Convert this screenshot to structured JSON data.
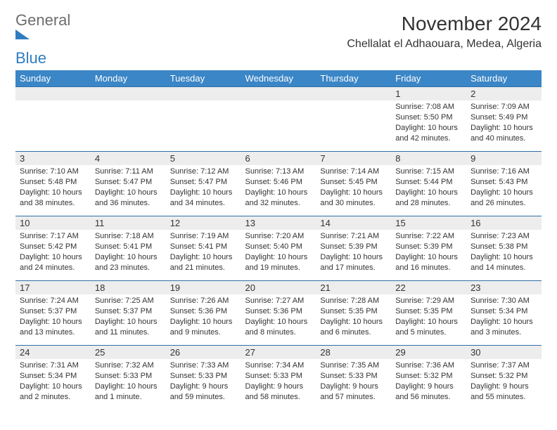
{
  "logo": {
    "text1": "General",
    "text2": "Blue"
  },
  "title": "November 2024",
  "location": "Chellalat el Adhaouara, Medea, Algeria",
  "colors": {
    "header_bg": "#3b86c6",
    "header_text": "#ffffff",
    "row_divider": "#2f6fa8",
    "daynum_bg": "#ededed",
    "logo_gray": "#6d6d6d",
    "logo_blue": "#2f7dc0",
    "page_bg": "#ffffff",
    "text": "#333333"
  },
  "typography": {
    "month_title_pt": 28,
    "location_pt": 16,
    "header_pt": 13,
    "daynum_pt": 13,
    "details_pt": 11
  },
  "weekdays": [
    "Sunday",
    "Monday",
    "Tuesday",
    "Wednesday",
    "Thursday",
    "Friday",
    "Saturday"
  ],
  "weeks": [
    [
      {
        "n": "",
        "sunrise": "",
        "sunset": "",
        "daylight": ""
      },
      {
        "n": "",
        "sunrise": "",
        "sunset": "",
        "daylight": ""
      },
      {
        "n": "",
        "sunrise": "",
        "sunset": "",
        "daylight": ""
      },
      {
        "n": "",
        "sunrise": "",
        "sunset": "",
        "daylight": ""
      },
      {
        "n": "",
        "sunrise": "",
        "sunset": "",
        "daylight": ""
      },
      {
        "n": "1",
        "sunrise": "Sunrise: 7:08 AM",
        "sunset": "Sunset: 5:50 PM",
        "daylight": "Daylight: 10 hours and 42 minutes."
      },
      {
        "n": "2",
        "sunrise": "Sunrise: 7:09 AM",
        "sunset": "Sunset: 5:49 PM",
        "daylight": "Daylight: 10 hours and 40 minutes."
      }
    ],
    [
      {
        "n": "3",
        "sunrise": "Sunrise: 7:10 AM",
        "sunset": "Sunset: 5:48 PM",
        "daylight": "Daylight: 10 hours and 38 minutes."
      },
      {
        "n": "4",
        "sunrise": "Sunrise: 7:11 AM",
        "sunset": "Sunset: 5:47 PM",
        "daylight": "Daylight: 10 hours and 36 minutes."
      },
      {
        "n": "5",
        "sunrise": "Sunrise: 7:12 AM",
        "sunset": "Sunset: 5:47 PM",
        "daylight": "Daylight: 10 hours and 34 minutes."
      },
      {
        "n": "6",
        "sunrise": "Sunrise: 7:13 AM",
        "sunset": "Sunset: 5:46 PM",
        "daylight": "Daylight: 10 hours and 32 minutes."
      },
      {
        "n": "7",
        "sunrise": "Sunrise: 7:14 AM",
        "sunset": "Sunset: 5:45 PM",
        "daylight": "Daylight: 10 hours and 30 minutes."
      },
      {
        "n": "8",
        "sunrise": "Sunrise: 7:15 AM",
        "sunset": "Sunset: 5:44 PM",
        "daylight": "Daylight: 10 hours and 28 minutes."
      },
      {
        "n": "9",
        "sunrise": "Sunrise: 7:16 AM",
        "sunset": "Sunset: 5:43 PM",
        "daylight": "Daylight: 10 hours and 26 minutes."
      }
    ],
    [
      {
        "n": "10",
        "sunrise": "Sunrise: 7:17 AM",
        "sunset": "Sunset: 5:42 PM",
        "daylight": "Daylight: 10 hours and 24 minutes."
      },
      {
        "n": "11",
        "sunrise": "Sunrise: 7:18 AM",
        "sunset": "Sunset: 5:41 PM",
        "daylight": "Daylight: 10 hours and 23 minutes."
      },
      {
        "n": "12",
        "sunrise": "Sunrise: 7:19 AM",
        "sunset": "Sunset: 5:41 PM",
        "daylight": "Daylight: 10 hours and 21 minutes."
      },
      {
        "n": "13",
        "sunrise": "Sunrise: 7:20 AM",
        "sunset": "Sunset: 5:40 PM",
        "daylight": "Daylight: 10 hours and 19 minutes."
      },
      {
        "n": "14",
        "sunrise": "Sunrise: 7:21 AM",
        "sunset": "Sunset: 5:39 PM",
        "daylight": "Daylight: 10 hours and 17 minutes."
      },
      {
        "n": "15",
        "sunrise": "Sunrise: 7:22 AM",
        "sunset": "Sunset: 5:39 PM",
        "daylight": "Daylight: 10 hours and 16 minutes."
      },
      {
        "n": "16",
        "sunrise": "Sunrise: 7:23 AM",
        "sunset": "Sunset: 5:38 PM",
        "daylight": "Daylight: 10 hours and 14 minutes."
      }
    ],
    [
      {
        "n": "17",
        "sunrise": "Sunrise: 7:24 AM",
        "sunset": "Sunset: 5:37 PM",
        "daylight": "Daylight: 10 hours and 13 minutes."
      },
      {
        "n": "18",
        "sunrise": "Sunrise: 7:25 AM",
        "sunset": "Sunset: 5:37 PM",
        "daylight": "Daylight: 10 hours and 11 minutes."
      },
      {
        "n": "19",
        "sunrise": "Sunrise: 7:26 AM",
        "sunset": "Sunset: 5:36 PM",
        "daylight": "Daylight: 10 hours and 9 minutes."
      },
      {
        "n": "20",
        "sunrise": "Sunrise: 7:27 AM",
        "sunset": "Sunset: 5:36 PM",
        "daylight": "Daylight: 10 hours and 8 minutes."
      },
      {
        "n": "21",
        "sunrise": "Sunrise: 7:28 AM",
        "sunset": "Sunset: 5:35 PM",
        "daylight": "Daylight: 10 hours and 6 minutes."
      },
      {
        "n": "22",
        "sunrise": "Sunrise: 7:29 AM",
        "sunset": "Sunset: 5:35 PM",
        "daylight": "Daylight: 10 hours and 5 minutes."
      },
      {
        "n": "23",
        "sunrise": "Sunrise: 7:30 AM",
        "sunset": "Sunset: 5:34 PM",
        "daylight": "Daylight: 10 hours and 3 minutes."
      }
    ],
    [
      {
        "n": "24",
        "sunrise": "Sunrise: 7:31 AM",
        "sunset": "Sunset: 5:34 PM",
        "daylight": "Daylight: 10 hours and 2 minutes."
      },
      {
        "n": "25",
        "sunrise": "Sunrise: 7:32 AM",
        "sunset": "Sunset: 5:33 PM",
        "daylight": "Daylight: 10 hours and 1 minute."
      },
      {
        "n": "26",
        "sunrise": "Sunrise: 7:33 AM",
        "sunset": "Sunset: 5:33 PM",
        "daylight": "Daylight: 9 hours and 59 minutes."
      },
      {
        "n": "27",
        "sunrise": "Sunrise: 7:34 AM",
        "sunset": "Sunset: 5:33 PM",
        "daylight": "Daylight: 9 hours and 58 minutes."
      },
      {
        "n": "28",
        "sunrise": "Sunrise: 7:35 AM",
        "sunset": "Sunset: 5:33 PM",
        "daylight": "Daylight: 9 hours and 57 minutes."
      },
      {
        "n": "29",
        "sunrise": "Sunrise: 7:36 AM",
        "sunset": "Sunset: 5:32 PM",
        "daylight": "Daylight: 9 hours and 56 minutes."
      },
      {
        "n": "30",
        "sunrise": "Sunrise: 7:37 AM",
        "sunset": "Sunset: 5:32 PM",
        "daylight": "Daylight: 9 hours and 55 minutes."
      }
    ]
  ]
}
